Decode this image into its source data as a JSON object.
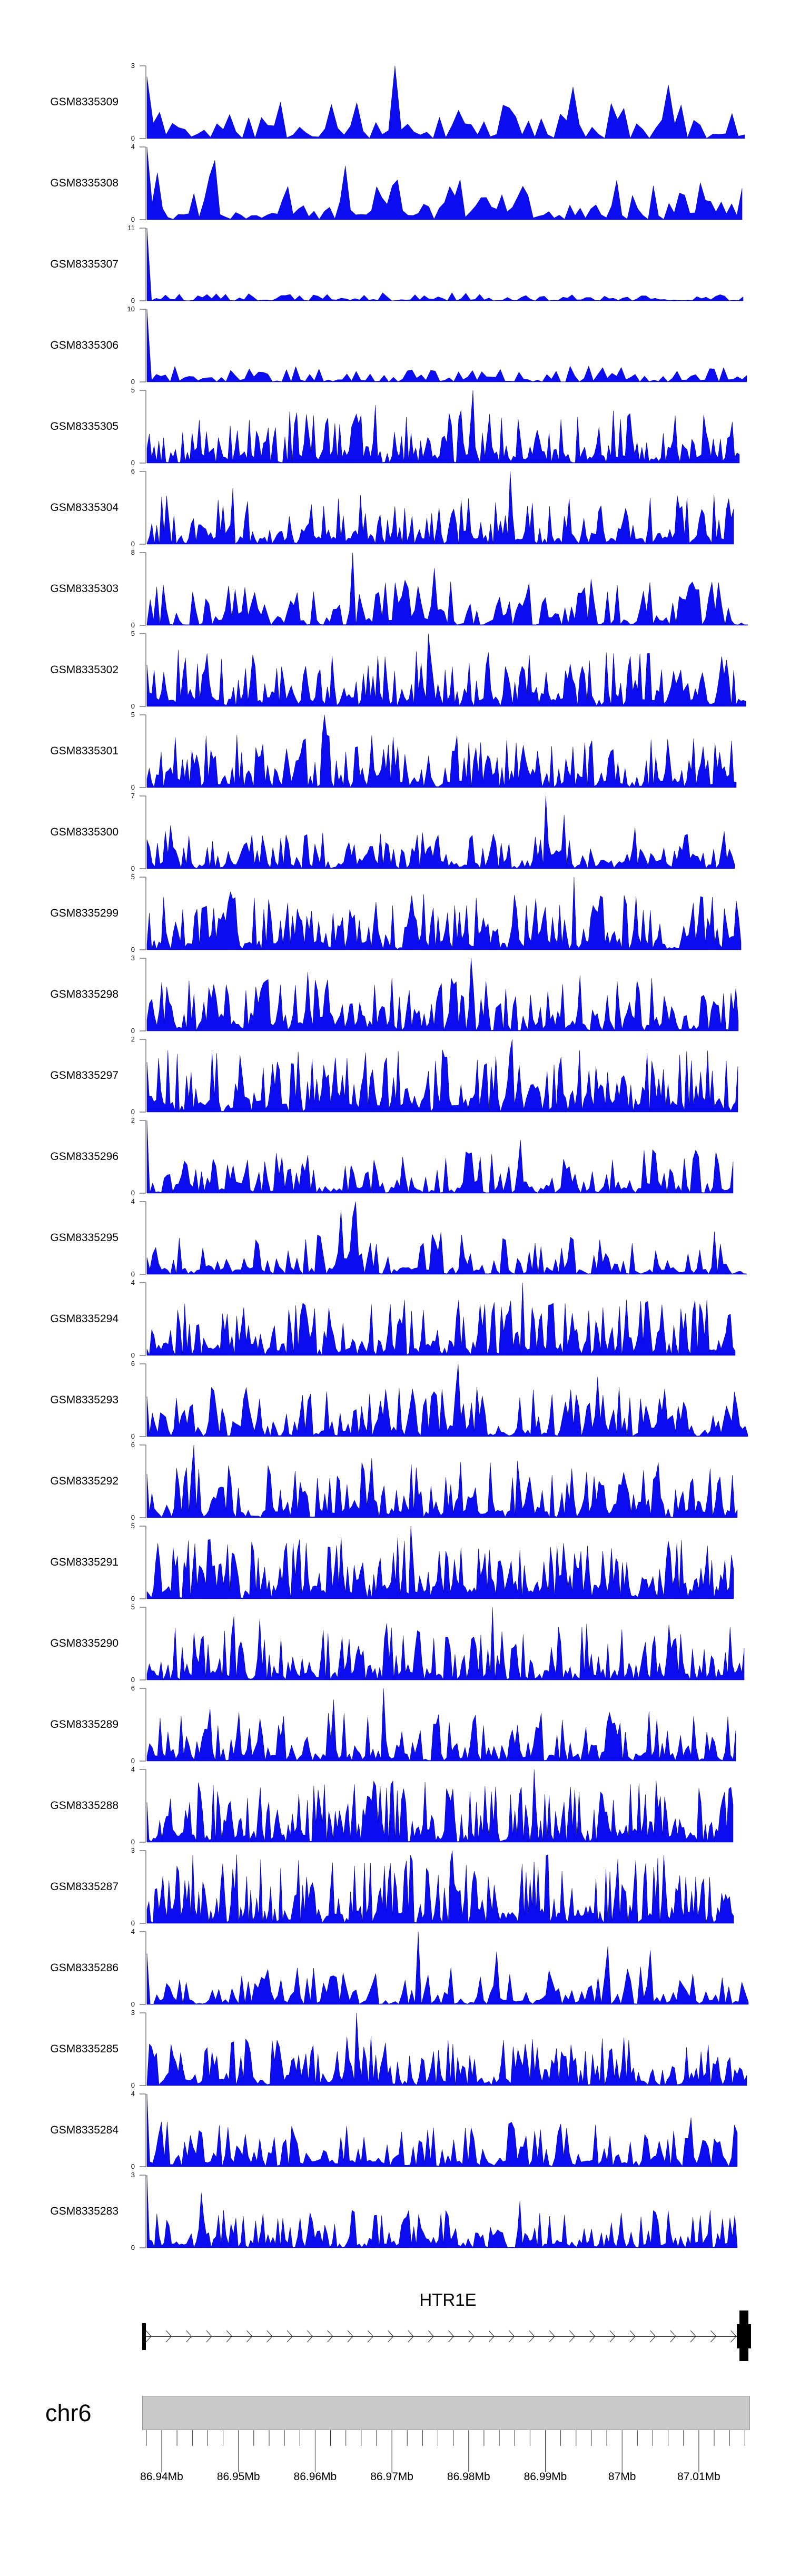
{
  "figure_type": "genome-browser-coverage-figure",
  "chart_data": {
    "type": "area",
    "kind": "genome-coverage-tracks",
    "region": {
      "chromosome": "chr6",
      "start_mb": 86.938,
      "end_mb": 87.016,
      "unit": "Mb"
    },
    "colors": {
      "signal_fill": "#0c0cf0",
      "signal_edge": "#00007a",
      "axis_gray": "#8c8c8c",
      "ideogram_fill": "#c9c9c9",
      "ideogram_border": "#969696",
      "tick_color": "#333333",
      "text_color": "#000000"
    },
    "y_axis_zero_label": "0",
    "tracks": [
      {
        "label": "GSM8335309",
        "ymin": 0,
        "ymax": 3,
        "ymax_label": "3",
        "seed": 11,
        "bins": 95,
        "base": 0.28,
        "gap": 0.25,
        "peaks": 4,
        "max_pos": 0.42,
        "start": 0.85
      },
      {
        "label": "GSM8335308",
        "ymin": 0,
        "ymax": 4,
        "ymax_label": "4",
        "seed": 22,
        "bins": 115,
        "base": 0.32,
        "gap": 0.2,
        "peaks": 5,
        "max_pos": 0.0,
        "start": 1
      },
      {
        "label": "GSM8335307",
        "ymin": 0,
        "ymax": 11,
        "ymax_label": "11",
        "seed": 33,
        "bins": 130,
        "base": 0.07,
        "gap": 0.3,
        "peaks": 0,
        "max_pos": 0.0,
        "start": 1
      },
      {
        "label": "GSM8335306",
        "ymin": 0,
        "ymax": 10,
        "ymax_label": "10",
        "seed": 44,
        "bins": 130,
        "base": 0.13,
        "gap": 0.25,
        "peaks": 0,
        "max_pos": 0.0,
        "start": 1
      },
      {
        "label": "GSM8335305",
        "ymin": 0,
        "ymax": 5,
        "ymax_label": "5",
        "seed": 55,
        "bins": 250,
        "base": 0.42,
        "gap": 0.22,
        "peaks": 3,
        "max_pos": 0.55,
        "start": 0
      },
      {
        "label": "GSM8335304",
        "ymin": 0,
        "ymax": 6,
        "ymax_label": "6",
        "seed": 66,
        "bins": 240,
        "base": 0.4,
        "gap": 0.22,
        "peaks": 3,
        "max_pos": 0.62,
        "start": 0
      },
      {
        "label": "GSM8335303",
        "ymin": 0,
        "ymax": 8,
        "ymax_label": "8",
        "seed": 77,
        "bins": 185,
        "base": 0.38,
        "gap": 0.3,
        "peaks": 4,
        "max_pos": 0.34,
        "start": 0
      },
      {
        "label": "GSM8335302",
        "ymin": 0,
        "ymax": 5,
        "ymax_label": "5",
        "seed": 88,
        "bins": 250,
        "base": 0.45,
        "gap": 0.2,
        "peaks": 3,
        "max_pos": 0.47,
        "start": 0
      },
      {
        "label": "GSM8335301",
        "ymin": 0,
        "ymax": 5,
        "ymax_label": "5",
        "seed": 99,
        "bins": 250,
        "base": 0.42,
        "gap": 0.22,
        "peaks": 3,
        "max_pos": 0.3,
        "start": 0
      },
      {
        "label": "GSM8335300",
        "ymin": 0,
        "ymax": 7,
        "ymax_label": "7",
        "seed": 110,
        "bins": 225,
        "base": 0.3,
        "gap": 0.25,
        "peaks": 3,
        "max_pos": 0.68,
        "start": 0.4
      },
      {
        "label": "GSM8335299",
        "ymin": 0,
        "ymax": 5,
        "ymax_label": "5",
        "seed": 121,
        "bins": 250,
        "base": 0.45,
        "gap": 0.2,
        "peaks": 3,
        "max_pos": 0.72,
        "start": 0
      },
      {
        "label": "GSM8335298",
        "ymin": 0,
        "ymax": 3,
        "ymax_label": "3",
        "seed": 132,
        "bins": 240,
        "base": 0.42,
        "gap": 0.22,
        "peaks": 4,
        "max_pos": 0.55,
        "start": 0
      },
      {
        "label": "GSM8335297",
        "ymin": 0,
        "ymax": 2,
        "ymax_label": "2",
        "seed": 143,
        "bins": 255,
        "base": 0.5,
        "gap": 0.2,
        "peaks": 3,
        "max_pos": 0.62,
        "start": 0
      },
      {
        "label": "GSM8335296",
        "ymin": 0,
        "ymax": 2,
        "ymax_label": "2",
        "seed": 154,
        "bins": 205,
        "base": 0.36,
        "gap": 0.28,
        "peaks": 3,
        "max_pos": 0.0,
        "start": 1
      },
      {
        "label": "GSM8335295",
        "ymin": 0,
        "ymax": 4,
        "ymax_label": "4",
        "seed": 165,
        "bins": 205,
        "base": 0.34,
        "gap": 0.27,
        "peaks": 4,
        "max_pos": 0.35,
        "start": 0
      },
      {
        "label": "GSM8335294",
        "ymin": 0,
        "ymax": 4,
        "ymax_label": "4",
        "seed": 176,
        "bins": 250,
        "base": 0.45,
        "gap": 0.2,
        "peaks": 3,
        "max_pos": 0.64,
        "start": 0
      },
      {
        "label": "GSM8335293",
        "ymin": 0,
        "ymax": 6,
        "ymax_label": "6",
        "seed": 187,
        "bins": 225,
        "base": 0.4,
        "gap": 0.25,
        "peaks": 4,
        "max_pos": 0.52,
        "start": 0.55
      },
      {
        "label": "GSM8335292",
        "ymin": 0,
        "ymax": 6,
        "ymax_label": "6",
        "seed": 198,
        "bins": 240,
        "base": 0.45,
        "gap": 0.22,
        "peaks": 4,
        "max_pos": 0.08,
        "start": 0.6
      },
      {
        "label": "GSM8335291",
        "ymin": 0,
        "ymax": 5,
        "ymax_label": "5",
        "seed": 209,
        "bins": 270,
        "base": 0.5,
        "gap": 0.18,
        "peaks": 3,
        "max_pos": 0.45,
        "start": 0
      },
      {
        "label": "GSM8335290",
        "ymin": 0,
        "ymax": 5,
        "ymax_label": "5",
        "seed": 220,
        "bins": 255,
        "base": 0.45,
        "gap": 0.2,
        "peaks": 3,
        "max_pos": 0.58,
        "start": 0
      },
      {
        "label": "GSM8335289",
        "ymin": 0,
        "ymax": 6,
        "ymax_label": "6",
        "seed": 231,
        "bins": 225,
        "base": 0.4,
        "gap": 0.24,
        "peaks": 4,
        "max_pos": 0.4,
        "start": 0
      },
      {
        "label": "GSM8335288",
        "ymin": 0,
        "ymax": 4,
        "ymax_label": "4",
        "seed": 242,
        "bins": 275,
        "base": 0.5,
        "gap": 0.18,
        "peaks": 3,
        "max_pos": 0.66,
        "start": 0
      },
      {
        "label": "GSM8335287",
        "ymin": 0,
        "ymax": 3,
        "ymax_label": "3",
        "seed": 253,
        "bins": 295,
        "base": 0.55,
        "gap": 0.16,
        "peaks": 3,
        "max_pos": 0.52,
        "start": 0
      },
      {
        "label": "GSM8335286",
        "ymin": 0,
        "ymax": 4,
        "ymax_label": "4",
        "seed": 264,
        "bins": 185,
        "base": 0.3,
        "gap": 0.3,
        "peaks": 4,
        "max_pos": 0.45,
        "start": 0.7
      },
      {
        "label": "GSM8335285",
        "ymin": 0,
        "ymax": 3,
        "ymax_label": "3",
        "seed": 275,
        "bins": 250,
        "base": 0.4,
        "gap": 0.22,
        "peaks": 3,
        "max_pos": 0.35,
        "start": 0
      },
      {
        "label": "GSM8335284",
        "ymin": 0,
        "ymax": 4,
        "ymax_label": "4",
        "seed": 286,
        "bins": 205,
        "base": 0.36,
        "gap": 0.26,
        "peaks": 3,
        "max_pos": 0.0,
        "start": 1
      },
      {
        "label": "GSM8335283",
        "ymin": 0,
        "ymax": 3,
        "ymax_label": "3",
        "seed": 297,
        "bins": 240,
        "base": 0.3,
        "gap": 0.25,
        "peaks": 3,
        "max_pos": 0.0,
        "start": 1
      }
    ],
    "gene": {
      "name": "HTR1E",
      "strand_direction": "right",
      "arrow_count": 30
    },
    "ideogram": {
      "label": "chr6"
    },
    "ruler": {
      "start_mb": 86.938,
      "end_mb": 87.016,
      "minor_step_mb": 0.002,
      "major_ticks": [
        {
          "value_mb": 86.94,
          "label": "86.94Mb"
        },
        {
          "value_mb": 86.95,
          "label": "86.95Mb"
        },
        {
          "value_mb": 86.96,
          "label": "86.96Mb"
        },
        {
          "value_mb": 86.97,
          "label": "86.97Mb"
        },
        {
          "value_mb": 86.98,
          "label": "86.98Mb"
        },
        {
          "value_mb": 86.99,
          "label": "86.99Mb"
        },
        {
          "value_mb": 87.0,
          "label": "87Mb"
        },
        {
          "value_mb": 87.01,
          "label": "87.01Mb"
        }
      ]
    }
  }
}
